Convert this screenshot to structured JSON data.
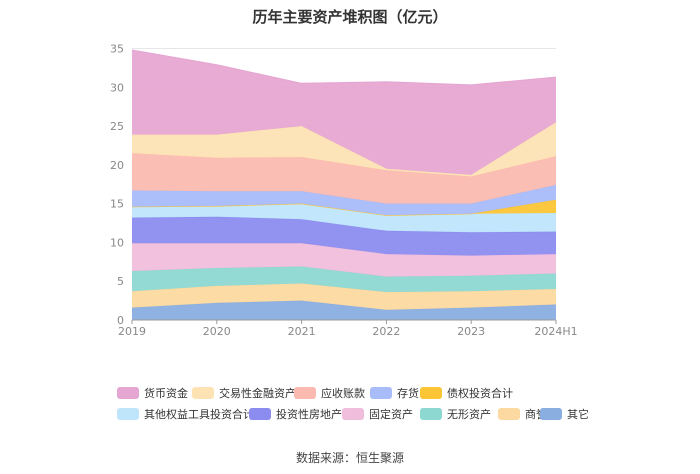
{
  "title": "历年主要资产堆积图（亿元）",
  "source": "数据来源：恒生聚源",
  "chart_data": {
    "type": "area",
    "stacked": true,
    "title": "历年主要资产堆积图（亿元）",
    "x": [
      "2019",
      "2020",
      "2021",
      "2022",
      "2023",
      "2024H1"
    ],
    "ylim": [
      0,
      35
    ],
    "yticks": [
      0,
      5,
      10,
      15,
      20,
      25,
      30,
      35
    ],
    "grid": true,
    "legend_position": "bottom",
    "series": [
      {
        "name": "其它",
        "color": "#8aaee0",
        "values": [
          1.6,
          2.2,
          2.5,
          1.3,
          1.6,
          2.0
        ]
      },
      {
        "name": "商誉",
        "color": "#fcd9a0",
        "values": [
          2.1,
          2.2,
          2.2,
          2.3,
          2.1,
          2.0
        ]
      },
      {
        "name": "无形资产",
        "color": "#8ed8d2",
        "values": [
          2.6,
          2.3,
          2.2,
          2.0,
          2.0,
          2.0
        ]
      },
      {
        "name": "固定资产",
        "color": "#f0bedc",
        "values": [
          3.6,
          3.2,
          3.0,
          2.9,
          2.6,
          2.5
        ]
      },
      {
        "name": "投资性房地产",
        "color": "#8c8cf0",
        "values": [
          3.3,
          3.4,
          3.1,
          3.0,
          3.0,
          2.9
        ]
      },
      {
        "name": "其他权益工具投资合计",
        "color": "#bfe5fb",
        "values": [
          1.4,
          1.4,
          2.0,
          2.0,
          2.4,
          2.4
        ]
      },
      {
        "name": "债权投资合计",
        "color": "#fcc535",
        "values": [
          0,
          0,
          0,
          0,
          0,
          1.7
        ]
      },
      {
        "name": "存货",
        "color": "#a8bcfa",
        "values": [
          2.1,
          1.9,
          1.6,
          1.5,
          1.3,
          1.9
        ]
      },
      {
        "name": "应收账款",
        "color": "#fbbab0",
        "values": [
          4.8,
          4.3,
          4.4,
          4.3,
          3.5,
          3.7
        ]
      },
      {
        "name": "交易性金融资产",
        "color": "#fde2b4",
        "values": [
          2.4,
          3.0,
          4.0,
          0.2,
          0.2,
          4.4
        ]
      },
      {
        "name": "货币资金",
        "color": "#e6a6d2",
        "values": [
          10.9,
          9.0,
          5.5,
          11.2,
          11.6,
          5.8
        ]
      }
    ],
    "legend_order": [
      "货币资金",
      "交易性金融资产",
      "应收账款",
      "存货",
      "债权投资合计",
      "其他权益工具投资合计",
      "投资性房地产",
      "固定资产",
      "无形资产",
      "商誉",
      "其它"
    ]
  }
}
